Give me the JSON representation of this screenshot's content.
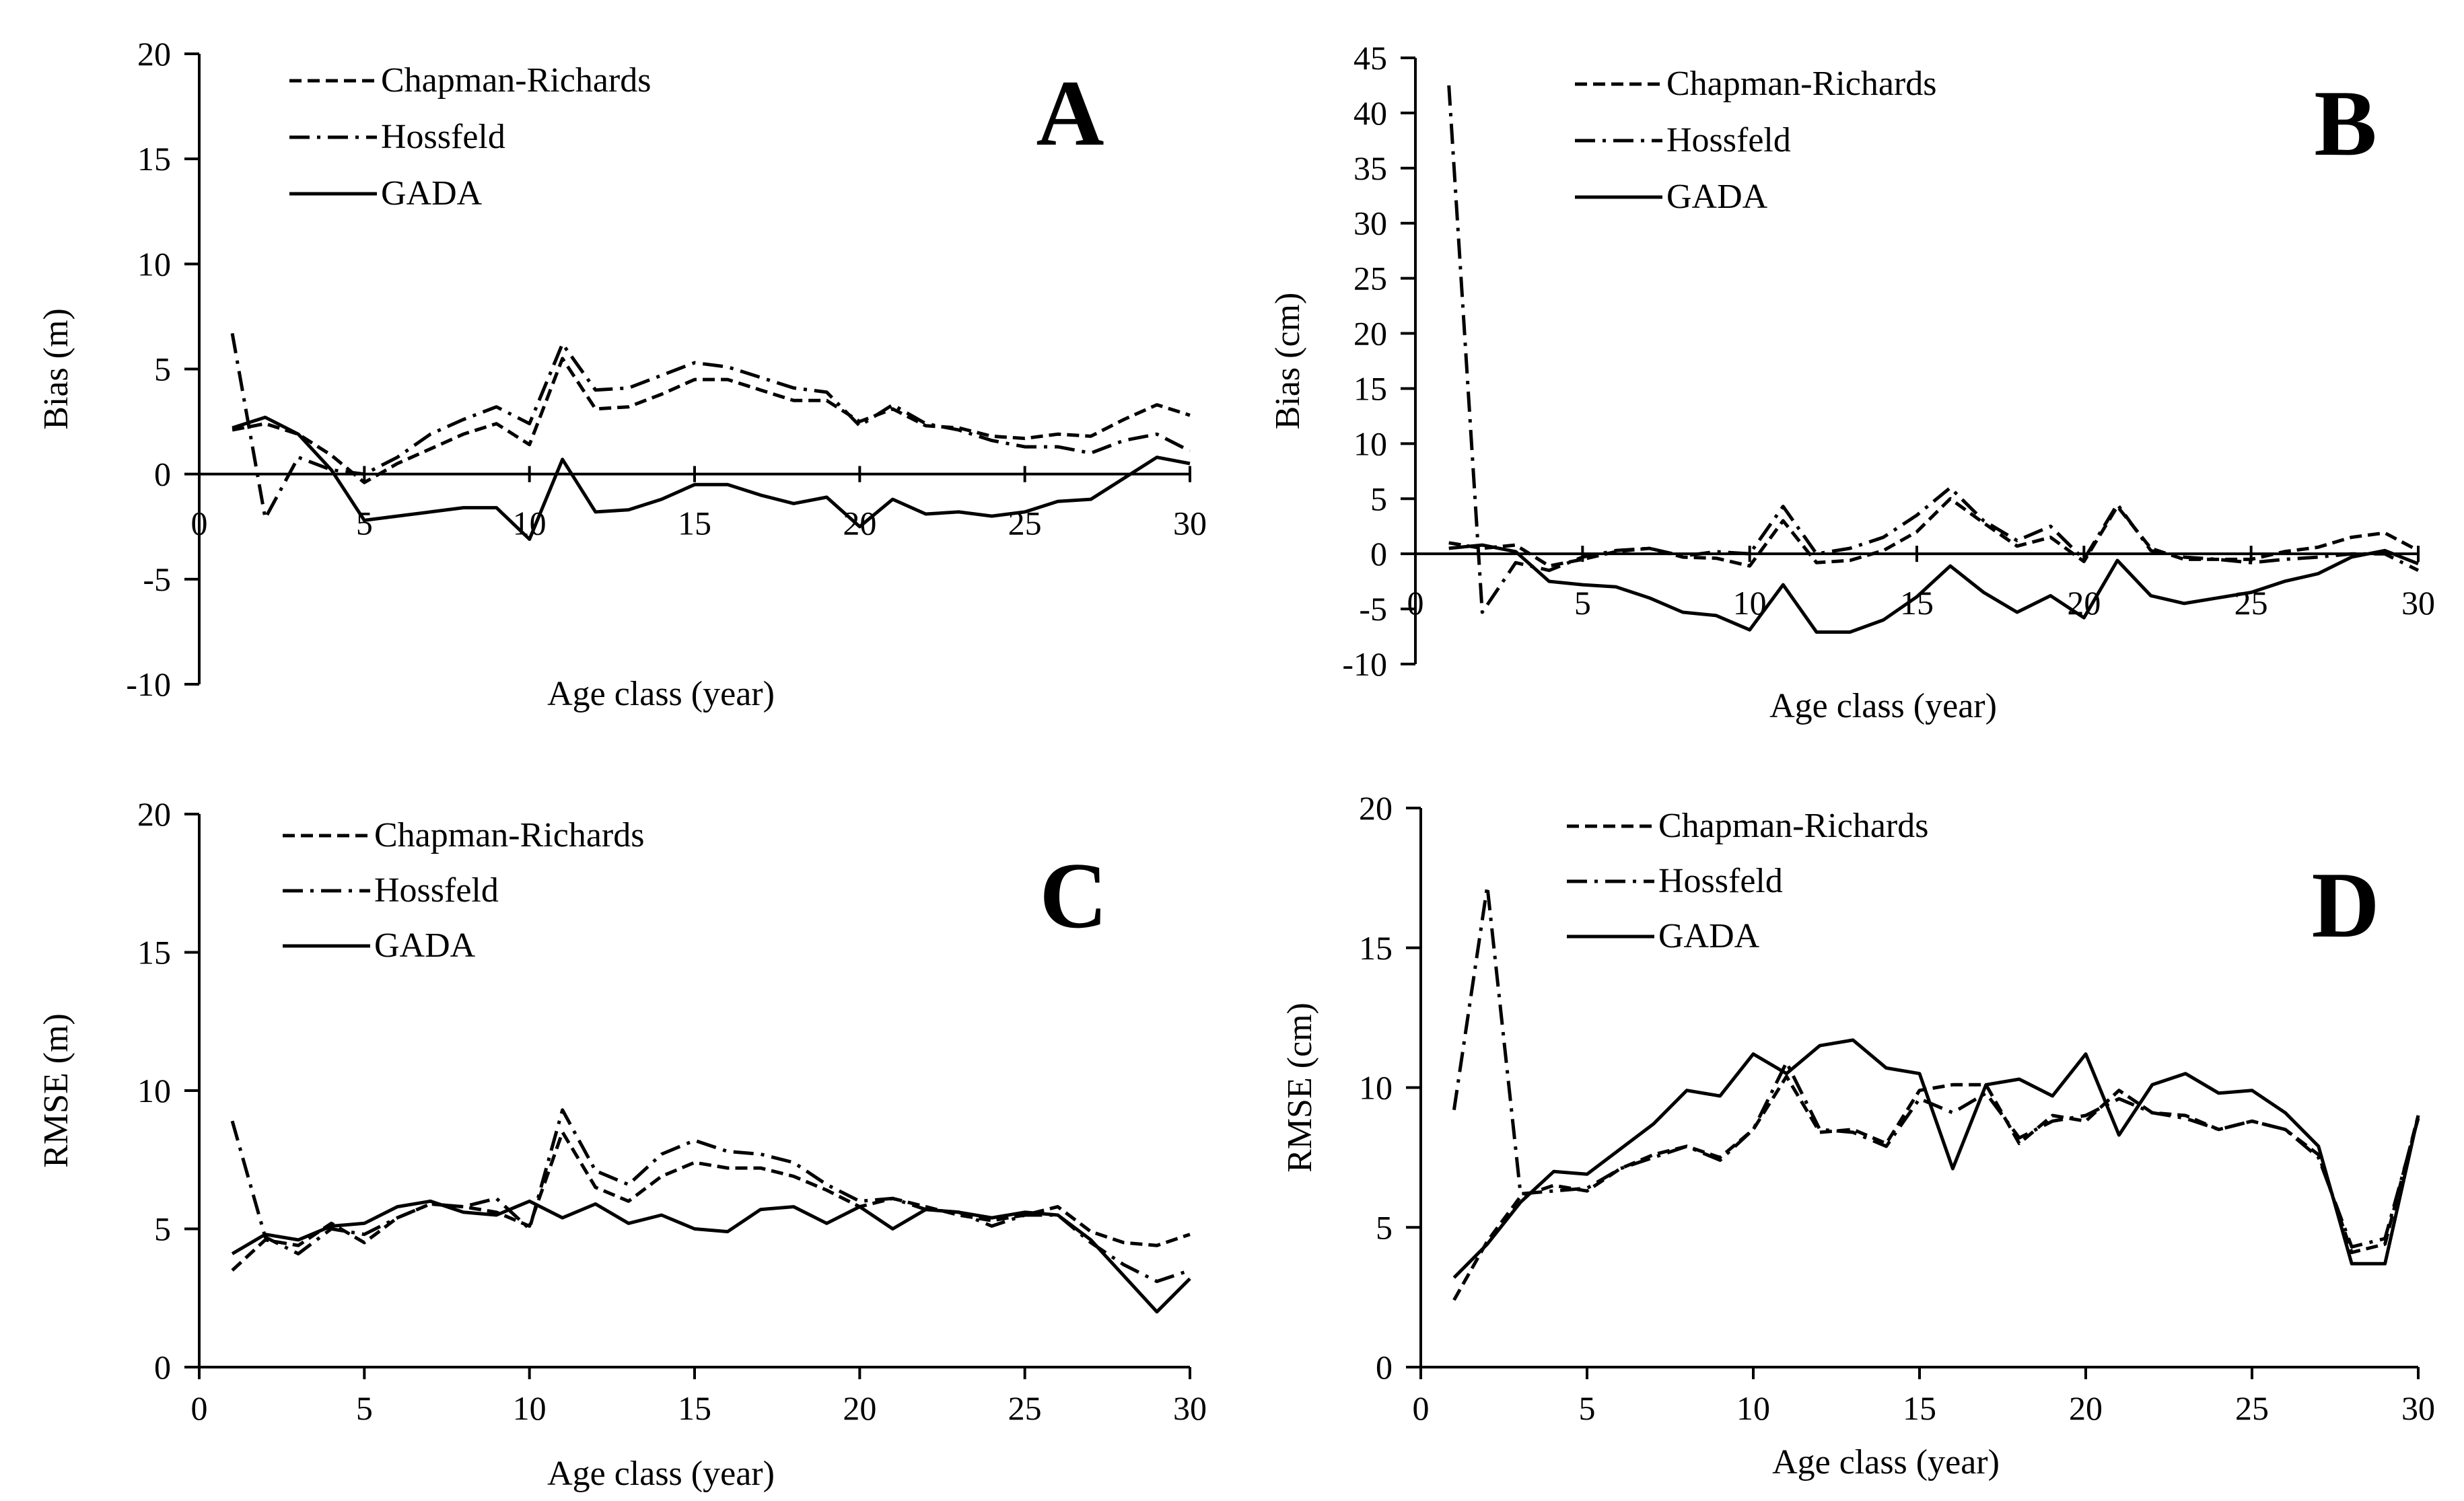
{
  "chart_data": [
    {
      "type": "line",
      "panel_label": "A",
      "xlabel": "Age class (year)",
      "ylabel": "Bias (m)",
      "xlim": [
        0,
        30
      ],
      "ylim": [
        -10,
        20
      ],
      "xticks": [
        0,
        5,
        10,
        15,
        20,
        25,
        30
      ],
      "yticks": [
        -10,
        -5,
        0,
        5,
        10,
        15,
        20
      ],
      "x_tick_labels_at_zero": true,
      "legend_position": "top-left",
      "series": [
        {
          "name": "Chapman-Richards",
          "style": "dashed",
          "x": [
            1,
            2,
            3,
            4,
            5,
            6,
            7,
            8,
            9,
            10,
            11,
            12,
            13,
            14,
            15,
            16,
            17,
            18,
            19,
            20,
            21,
            22,
            23,
            24,
            25,
            26,
            27,
            28,
            29,
            30
          ],
          "values": [
            2.1,
            2.4,
            1.9,
            0.9,
            -0.4,
            0.5,
            1.2,
            1.9,
            2.4,
            1.4,
            5.5,
            3.1,
            3.2,
            3.8,
            4.5,
            4.5,
            4.0,
            3.5,
            3.5,
            2.5,
            3.1,
            2.3,
            2.2,
            1.8,
            1.7,
            1.9,
            1.8,
            2.6,
            3.3,
            2.8
          ]
        },
        {
          "name": "Hossfeld",
          "style": "dashdot",
          "x": [
            1,
            2,
            3,
            4,
            5,
            6,
            7,
            8,
            9,
            10,
            11,
            12,
            13,
            14,
            15,
            16,
            17,
            18,
            19,
            20,
            21,
            22,
            23,
            24,
            25,
            26,
            27,
            28,
            29,
            30
          ],
          "values": [
            6.7,
            -2.1,
            0.8,
            0.2,
            0.0,
            0.8,
            1.9,
            2.6,
            3.2,
            2.4,
            6.2,
            4.0,
            4.1,
            4.7,
            5.3,
            5.1,
            4.6,
            4.1,
            3.9,
            2.3,
            3.3,
            2.4,
            2.1,
            1.6,
            1.3,
            1.3,
            1.0,
            1.6,
            1.9,
            1.1
          ]
        },
        {
          "name": "GADA",
          "style": "solid",
          "x": [
            1,
            2,
            3,
            4,
            5,
            6,
            7,
            8,
            9,
            10,
            11,
            12,
            13,
            14,
            15,
            16,
            17,
            18,
            19,
            20,
            21,
            22,
            23,
            24,
            25,
            26,
            27,
            28,
            29,
            30
          ],
          "values": [
            2.2,
            2.7,
            1.9,
            0.2,
            -2.2,
            -2.0,
            -1.8,
            -1.6,
            -1.6,
            -3.1,
            0.7,
            -1.8,
            -1.7,
            -1.2,
            -0.5,
            -0.5,
            -1.0,
            -1.4,
            -1.1,
            -2.5,
            -1.2,
            -1.9,
            -1.8,
            -2.0,
            -1.8,
            -1.3,
            -1.2,
            -0.2,
            0.8,
            0.5
          ]
        }
      ]
    },
    {
      "type": "line",
      "panel_label": "B",
      "xlabel": "Age class (year)",
      "ylabel": "Bias (cm)",
      "xlim": [
        0,
        30
      ],
      "ylim": [
        -10,
        45
      ],
      "xticks": [
        0,
        5,
        10,
        15,
        20,
        25,
        30
      ],
      "yticks": [
        -10,
        -5,
        0,
        5,
        10,
        15,
        20,
        25,
        30,
        35,
        40,
        45
      ],
      "x_tick_labels_at_zero": true,
      "legend_position": "top-left",
      "series": [
        {
          "name": "Chapman-Richards",
          "style": "dashed",
          "x": [
            1,
            2,
            3,
            4,
            5,
            6,
            7,
            8,
            9,
            10,
            11,
            12,
            13,
            14,
            15,
            16,
            17,
            18,
            19,
            20,
            21,
            22,
            23,
            24,
            25,
            26,
            27,
            28,
            29,
            30
          ],
          "values": [
            1.0,
            0.5,
            0.8,
            -1.1,
            -0.5,
            0.2,
            0.5,
            -0.3,
            -0.4,
            -1.1,
            3.0,
            -0.8,
            -0.6,
            0.3,
            2.0,
            5.0,
            2.8,
            0.7,
            1.5,
            -0.7,
            4.3,
            0.5,
            -0.5,
            -0.5,
            -0.5,
            0.2,
            0.6,
            1.5,
            1.9,
            0.3
          ]
        },
        {
          "name": "Hossfeld",
          "style": "dashdot",
          "x": [
            1,
            2,
            3,
            4,
            5,
            6,
            7,
            8,
            9,
            10,
            11,
            12,
            13,
            14,
            15,
            16,
            17,
            18,
            19,
            20,
            21,
            22,
            23,
            24,
            25,
            26,
            27,
            28,
            29,
            30
          ],
          "values": [
            42.5,
            -5.3,
            -0.8,
            -1.5,
            -0.3,
            0.3,
            0.5,
            -0.2,
            0.2,
            0.0,
            4.3,
            0.0,
            0.5,
            1.5,
            3.5,
            6.0,
            3.0,
            1.2,
            2.5,
            -0.5,
            4.5,
            0.3,
            -0.3,
            -0.5,
            -0.8,
            -0.5,
            -0.3,
            0.0,
            0.0,
            -1.5
          ]
        },
        {
          "name": "GADA",
          "style": "solid",
          "x": [
            1,
            2,
            3,
            4,
            5,
            6,
            7,
            8,
            9,
            10,
            11,
            12,
            13,
            14,
            15,
            16,
            17,
            18,
            19,
            20,
            21,
            22,
            23,
            24,
            25,
            26,
            27,
            28,
            29,
            30
          ],
          "values": [
            0.5,
            0.8,
            0.2,
            -2.5,
            -2.8,
            -3.0,
            -4.0,
            -5.3,
            -5.6,
            -6.9,
            -2.8,
            -7.1,
            -7.1,
            -6.0,
            -3.9,
            -1.1,
            -3.5,
            -5.3,
            -3.8,
            -5.8,
            -0.6,
            -3.8,
            -4.5,
            -4.0,
            -3.5,
            -2.5,
            -1.8,
            -0.3,
            0.3,
            -0.9
          ]
        }
      ]
    },
    {
      "type": "line",
      "panel_label": "C",
      "xlabel": "Age class (year)",
      "ylabel": "RMSE (m)",
      "xlim": [
        0,
        30
      ],
      "ylim": [
        0,
        20
      ],
      "xticks": [
        0,
        5,
        10,
        15,
        20,
        25,
        30
      ],
      "yticks": [
        0,
        5,
        10,
        15,
        20
      ],
      "legend_position": "top-left",
      "series": [
        {
          "name": "Chapman-Richards",
          "style": "dashed",
          "x": [
            1,
            2,
            3,
            4,
            5,
            6,
            7,
            8,
            9,
            10,
            11,
            12,
            13,
            14,
            15,
            16,
            17,
            18,
            19,
            20,
            21,
            22,
            23,
            24,
            25,
            26,
            27,
            28,
            29,
            30
          ],
          "values": [
            3.5,
            4.6,
            4.4,
            5.2,
            4.5,
            5.4,
            5.9,
            5.8,
            5.6,
            5.1,
            8.5,
            6.5,
            6.0,
            6.9,
            7.4,
            7.2,
            7.2,
            6.9,
            6.4,
            5.8,
            6.1,
            5.8,
            5.5,
            5.3,
            5.5,
            5.8,
            4.9,
            4.5,
            4.4,
            4.8
          ]
        },
        {
          "name": "Hossfeld",
          "style": "dashdot",
          "x": [
            1,
            2,
            3,
            4,
            5,
            6,
            7,
            8,
            9,
            10,
            11,
            12,
            13,
            14,
            15,
            16,
            17,
            18,
            19,
            20,
            21,
            22,
            23,
            24,
            25,
            26,
            27,
            28,
            29,
            30
          ],
          "values": [
            8.9,
            4.7,
            4.1,
            5.0,
            4.8,
            5.4,
            5.9,
            5.8,
            6.1,
            5.0,
            9.3,
            7.1,
            6.6,
            7.7,
            8.2,
            7.8,
            7.7,
            7.4,
            6.6,
            6.0,
            6.1,
            5.7,
            5.6,
            5.1,
            5.5,
            5.5,
            4.5,
            3.7,
            3.1,
            3.5
          ]
        },
        {
          "name": "GADA",
          "style": "solid",
          "x": [
            1,
            2,
            3,
            4,
            5,
            6,
            7,
            8,
            9,
            10,
            11,
            12,
            13,
            14,
            15,
            16,
            17,
            18,
            19,
            20,
            21,
            22,
            23,
            24,
            25,
            26,
            27,
            28,
            29,
            30
          ],
          "values": [
            4.1,
            4.8,
            4.6,
            5.1,
            5.2,
            5.8,
            6.0,
            5.6,
            5.5,
            6.0,
            5.4,
            5.9,
            5.2,
            5.5,
            5.0,
            4.9,
            5.7,
            5.8,
            5.2,
            5.8,
            5.0,
            5.7,
            5.6,
            5.4,
            5.6,
            5.5,
            4.6,
            3.3,
            2.0,
            3.2
          ]
        }
      ]
    },
    {
      "type": "line",
      "panel_label": "D",
      "xlabel": "Age class (year)",
      "ylabel": "RMSE (cm)",
      "xlim": [
        0,
        30
      ],
      "ylim": [
        0,
        20
      ],
      "xticks": [
        0,
        5,
        10,
        15,
        20,
        25,
        30
      ],
      "yticks": [
        0,
        5,
        10,
        15,
        20
      ],
      "legend_position": "top-left",
      "series": [
        {
          "name": "Chapman-Richards",
          "style": "dashed",
          "x": [
            1,
            2,
            3,
            4,
            5,
            6,
            7,
            8,
            9,
            10,
            11,
            12,
            13,
            14,
            15,
            16,
            17,
            18,
            19,
            20,
            21,
            22,
            23,
            24,
            25,
            26,
            27,
            28,
            29,
            30
          ],
          "values": [
            2.4,
            4.5,
            6.1,
            6.5,
            6.3,
            7.1,
            7.6,
            7.9,
            7.5,
            8.5,
            10.4,
            8.4,
            8.5,
            8.0,
            9.9,
            10.1,
            10.1,
            8.0,
            9.0,
            8.8,
            9.9,
            9.1,
            9.0,
            8.5,
            8.8,
            8.5,
            7.6,
            4.1,
            4.4,
            9.0
          ]
        },
        {
          "name": "Hossfeld",
          "style": "dashdot",
          "x": [
            1,
            2,
            3,
            4,
            5,
            6,
            7,
            8,
            9,
            10,
            11,
            12,
            13,
            14,
            15,
            16,
            17,
            18,
            19,
            20,
            21,
            22,
            23,
            24,
            25,
            26,
            27,
            28,
            29,
            30
          ],
          "values": [
            9.2,
            17.2,
            6.2,
            6.3,
            6.4,
            7.1,
            7.5,
            7.9,
            7.4,
            8.5,
            10.9,
            8.5,
            8.4,
            7.9,
            9.6,
            9.1,
            9.8,
            8.2,
            8.8,
            9.0,
            9.6,
            9.1,
            8.9,
            8.5,
            8.8,
            8.5,
            7.5,
            4.3,
            4.6,
            8.9
          ]
        },
        {
          "name": "GADA",
          "style": "solid",
          "x": [
            1,
            2,
            3,
            4,
            5,
            6,
            7,
            8,
            9,
            10,
            11,
            12,
            13,
            14,
            15,
            16,
            17,
            18,
            19,
            20,
            21,
            22,
            23,
            24,
            25,
            26,
            27,
            28,
            29,
            30
          ],
          "values": [
            3.2,
            4.4,
            5.9,
            7.0,
            6.9,
            7.8,
            8.7,
            9.9,
            9.7,
            11.2,
            10.5,
            11.5,
            11.7,
            10.7,
            10.5,
            7.1,
            10.1,
            10.3,
            9.7,
            11.2,
            8.3,
            10.1,
            10.5,
            9.8,
            9.9,
            9.1,
            7.9,
            3.7,
            3.7,
            9.0
          ]
        }
      ]
    }
  ]
}
